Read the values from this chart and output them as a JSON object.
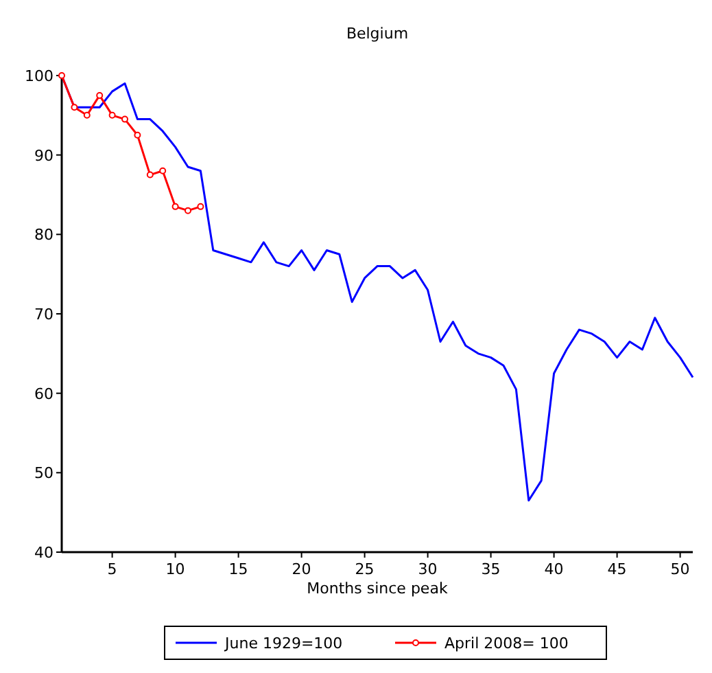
{
  "chart_data": {
    "type": "line",
    "title": "Belgium",
    "xlabel": "Months since peak",
    "x": [
      1,
      2,
      3,
      4,
      5,
      6,
      7,
      8,
      9,
      10,
      11,
      12,
      13,
      14,
      15,
      16,
      17,
      18,
      19,
      20,
      21,
      22,
      23,
      24,
      25,
      26,
      27,
      28,
      29,
      30,
      31,
      32,
      33,
      34,
      35,
      36,
      37,
      38,
      39,
      40,
      41,
      42,
      43,
      44,
      45,
      46,
      47,
      48,
      49,
      50,
      51
    ],
    "series": [
      {
        "name": "June  1929=100",
        "color": "#0000ff",
        "marker": "none",
        "values": [
          100,
          96,
          96,
          96,
          98,
          99,
          94.5,
          94.5,
          93,
          91,
          88.5,
          88,
          78,
          77.5,
          77,
          76.5,
          79,
          76.5,
          76,
          78,
          75.5,
          78,
          77.5,
          71.5,
          74.5,
          76,
          76,
          74.5,
          75.5,
          73,
          66.5,
          69,
          66,
          65,
          64.5,
          63.5,
          60.5,
          46.5,
          49,
          62.5,
          65.5,
          68,
          67.5,
          66.5,
          64.5,
          66.5,
          65.5,
          69.5,
          66.5,
          64.5,
          62
        ]
      },
      {
        "name": "April 2008= 100",
        "color": "#ff0000",
        "marker": "circle",
        "x": [
          1,
          2,
          3,
          4,
          5,
          6,
          7,
          8,
          9,
          10,
          11,
          12
        ],
        "values": [
          100,
          96,
          95,
          97.5,
          95,
          94.5,
          92.5,
          87.5,
          88,
          83.5,
          83,
          83.5
        ]
      }
    ],
    "xlim": [
      1,
      51
    ],
    "ylim": [
      40,
      100
    ],
    "xticks": [
      5,
      10,
      15,
      20,
      25,
      30,
      35,
      40,
      45,
      50
    ],
    "yticks": [
      40,
      50,
      60,
      70,
      80,
      90,
      100
    ],
    "grid": false,
    "legend": "bottom"
  }
}
